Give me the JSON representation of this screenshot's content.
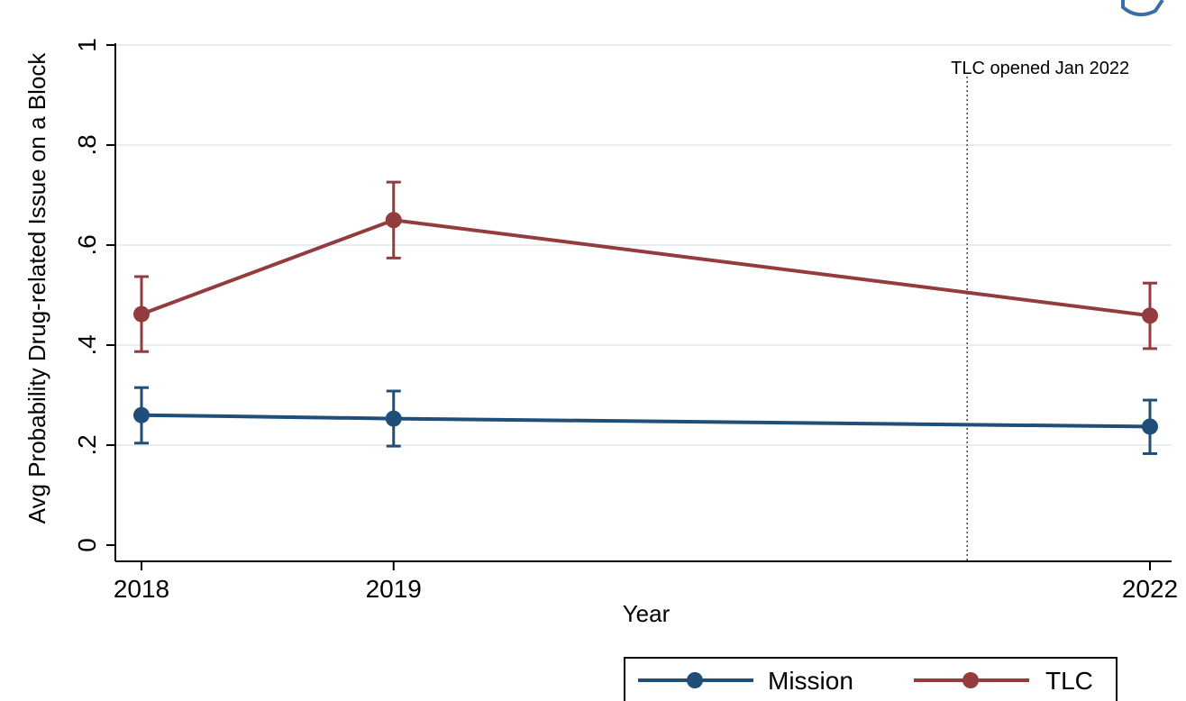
{
  "chart_data": {
    "type": "line",
    "title": "",
    "xlabel": "Year",
    "ylabel": "Avg Probability Drug-related Issue on a Block",
    "x": [
      2018,
      2019,
      2022
    ],
    "x_tick_labels": [
      "2018",
      "2019",
      "2022"
    ],
    "ylim": [
      0,
      1
    ],
    "y_ticks": [
      0,
      0.2,
      0.4,
      0.6,
      0.8,
      1
    ],
    "y_tick_labels": [
      "0",
      ".2",
      ".4",
      ".6",
      ".8",
      "1"
    ],
    "grid": true,
    "series": [
      {
        "name": "Mission",
        "color": "#1f4e79",
        "values": [
          0.26,
          0.253,
          0.237
        ],
        "ci_low": [
          0.204,
          0.198,
          0.183
        ],
        "ci_high": [
          0.315,
          0.308,
          0.29
        ]
      },
      {
        "name": "TLC",
        "color": "#943b3e",
        "values": [
          0.462,
          0.65,
          0.459
        ],
        "ci_low": [
          0.387,
          0.574,
          0.393
        ],
        "ci_high": [
          0.537,
          0.726,
          0.524
        ]
      }
    ],
    "annotation": {
      "text": "TLC opened Jan 2022",
      "x": 2021.275
    },
    "legend": {
      "position": "bottom-right",
      "labels": [
        "Mission",
        "TLC"
      ]
    }
  }
}
